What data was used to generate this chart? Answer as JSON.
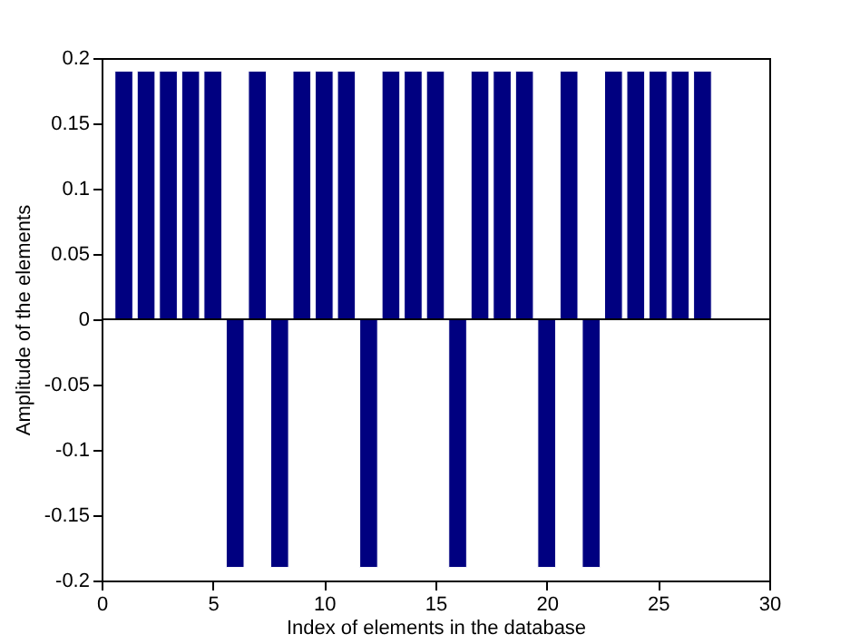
{
  "chart_data": {
    "type": "bar",
    "xlabel": "Index of elements in the database",
    "ylabel": "Amplitude of the elements",
    "x": [
      1,
      2,
      3,
      4,
      5,
      6,
      7,
      8,
      9,
      10,
      11,
      12,
      13,
      14,
      15,
      16,
      17,
      18,
      19,
      20,
      21,
      22,
      23,
      24,
      25,
      26,
      27
    ],
    "values": [
      0.19,
      0.19,
      0.19,
      0.19,
      0.19,
      -0.19,
      0.19,
      -0.19,
      0.19,
      0.19,
      0.19,
      -0.19,
      0.19,
      0.19,
      0.19,
      -0.19,
      0.19,
      0.19,
      0.19,
      -0.19,
      0.19,
      -0.19,
      0.19,
      0.19,
      0.19,
      0.19,
      0.19
    ],
    "color": "#000080",
    "xlim": [
      0,
      30
    ],
    "xticks": [
      0,
      5,
      10,
      15,
      20,
      25,
      30
    ],
    "ylim": [
      -0.2,
      0.2
    ],
    "yticks": [
      -0.2,
      -0.15,
      -0.1,
      -0.05,
      0,
      0.05,
      0.1,
      0.15,
      0.2
    ],
    "ref_lines": [
      {
        "axis": "y",
        "value": 0,
        "color": "#000000"
      }
    ],
    "grid": false
  }
}
